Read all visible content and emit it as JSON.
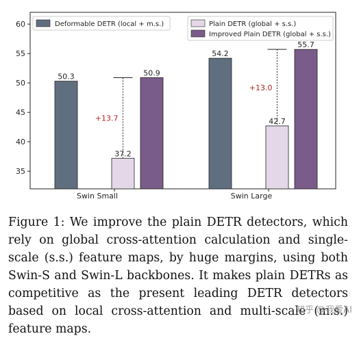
{
  "chart_data": {
    "type": "bar",
    "categories": [
      "Swin Small",
      "Swin Large"
    ],
    "series": [
      {
        "name": "Deformable DETR (local + m.s.)",
        "values": [
          50.3,
          54.2
        ],
        "color": "#5f6f7f"
      },
      {
        "name": "Plain DETR (global + s.s.)",
        "values": [
          37.2,
          42.7
        ],
        "color": "#e4d8e8"
      },
      {
        "name": "Improved Plain DETR (global + s.s.)",
        "values": [
          50.9,
          55.7
        ],
        "color": "#7a5c8a"
      }
    ],
    "value_labels": [
      [
        "50.3",
        "54.2"
      ],
      [
        "37.2",
        "42.7"
      ],
      [
        "50.9",
        "55.7"
      ]
    ],
    "improvements": [
      "+13.7",
      "+13.0"
    ],
    "yticks": [
      "35",
      "40",
      "45",
      "50",
      "55",
      "60"
    ],
    "ylim": [
      32,
      62
    ],
    "xlabel": "",
    "ylabel": "",
    "title": "",
    "legend_placement": "top",
    "grid": false
  },
  "caption": "Figure 1: We improve the plain DETR detectors, which rely on global cross-attention calculation and single-scale (s.s.) feature maps, by huge margins, using both Swin-S and Swin-L backbones. It makes plain DETRs as competitive as the present leading DETR detectors based on local cross-attention and multi-scale (m.s.) feature maps.",
  "watermark": "知乎 @我爱AI"
}
